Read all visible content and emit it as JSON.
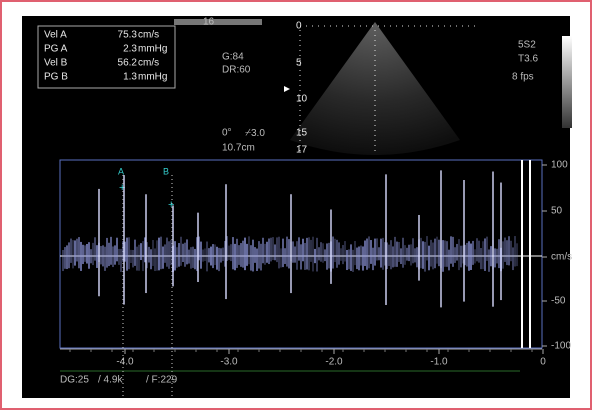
{
  "measurements": [
    {
      "label": "Vel A",
      "value": "75.3",
      "unit": "cm/s"
    },
    {
      "label": "PG A",
      "value": "2.3",
      "unit": "mmHg"
    },
    {
      "label": "Vel B",
      "value": "56.2",
      "unit": "cm/s"
    },
    {
      "label": "PG B",
      "value": "1.3",
      "unit": "mmHg"
    }
  ],
  "frame_number": "16",
  "gain": "G:84",
  "dynamic_range": "DR:60",
  "angle": "0°",
  "steer": "3.0",
  "depth": "10.7cm",
  "depth_scale": [
    "0",
    "5",
    "10",
    "15",
    "17"
  ],
  "probe": "5S2",
  "thermal_index": "T3.6",
  "frame_rate": "8 fps",
  "markers": [
    "A",
    "B"
  ],
  "velocity_axis": {
    "ticks": [
      "100",
      "50",
      "cm/s",
      "-50",
      "-100"
    ]
  },
  "time_axis": {
    "ticks": [
      "-4.0",
      "-3.0",
      "-2.0",
      "-1.0",
      "0"
    ]
  },
  "doppler_settings": [
    "DG:25",
    "/ 4.9k",
    "/ F:229"
  ]
}
